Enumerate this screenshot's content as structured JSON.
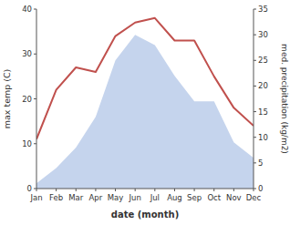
{
  "chart_data": {
    "type": "line",
    "categories": [
      "Jan",
      "Feb",
      "Mar",
      "Apr",
      "May",
      "Jun",
      "Jul",
      "Aug",
      "Sep",
      "Oct",
      "Nov",
      "Dec"
    ],
    "series": [
      {
        "type": "area",
        "axis": "y2",
        "color": "#c5d4ed",
        "values": [
          1,
          4,
          8,
          14,
          25,
          30,
          28,
          22,
          17,
          17,
          9,
          6
        ]
      },
      {
        "type": "line",
        "axis": "y",
        "color": "#c0504d",
        "values": [
          11,
          22,
          27,
          26,
          34,
          37,
          38,
          33,
          33,
          25,
          18,
          14
        ]
      }
    ],
    "xlabel": "date (month)",
    "ylabel": "max temp (C)",
    "y2label": "med. precipitation (kg/m2)",
    "ylim": [
      0,
      40
    ],
    "yticks": [
      0,
      10,
      20,
      30,
      40
    ],
    "y2lim": [
      0,
      35
    ],
    "y2ticks": [
      0,
      5,
      10,
      15,
      20,
      25,
      30,
      35
    ],
    "grid": false
  }
}
